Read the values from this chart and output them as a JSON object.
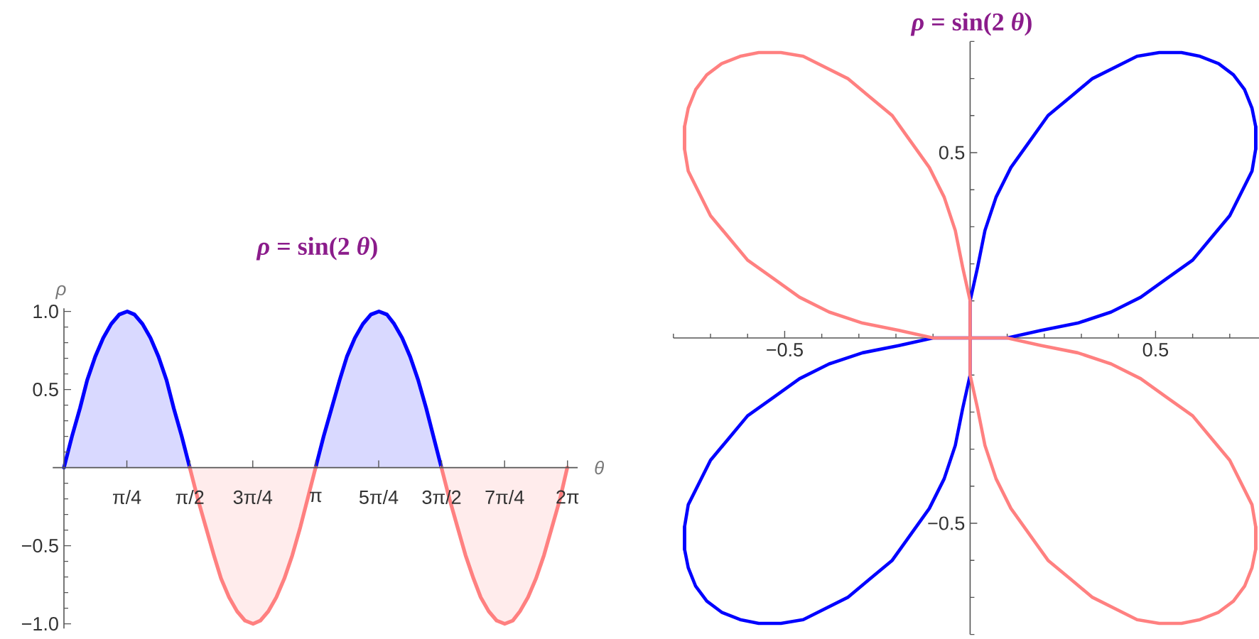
{
  "chart_data": [
    {
      "type": "area",
      "title": "*ρ* = sin(2 *θ*)",
      "xlabel": "θ",
      "ylabel": "ρ",
      "x": [
        0,
        0.1,
        0.2,
        0.29,
        0.39,
        0.49,
        0.59,
        0.69,
        0.79,
        0.88,
        0.98,
        1.08,
        1.18,
        1.28,
        1.37,
        1.47,
        1.57,
        1.67,
        1.77,
        1.87,
        1.96,
        2.06,
        2.16,
        2.26,
        2.36,
        2.45,
        2.55,
        2.65,
        2.75,
        2.85,
        2.95,
        3.04,
        3.14,
        3.24,
        3.34,
        3.44,
        3.53,
        3.63,
        3.73,
        3.83,
        3.93,
        4.03,
        4.12,
        4.22,
        4.32,
        4.42,
        4.52,
        4.61,
        4.71,
        4.81,
        4.91,
        5.01,
        5.11,
        5.2,
        5.3,
        5.4,
        5.5,
        5.6,
        5.69,
        5.79,
        5.89,
        5.99,
        6.09,
        6.19,
        6.28
      ],
      "xlim": [
        -0.14,
        6.41
      ],
      "ylim": [
        -1.03,
        1.02
      ],
      "xticks": [
        {
          "value": 0.785,
          "label": "π/4"
        },
        {
          "value": 1.571,
          "label": "π/2"
        },
        {
          "value": 2.356,
          "label": "3π/4"
        },
        {
          "value": 3.142,
          "label": "π"
        },
        {
          "value": 3.927,
          "label": "5π/4"
        },
        {
          "value": 4.712,
          "label": "3π/2"
        },
        {
          "value": 5.498,
          "label": "7π/4"
        },
        {
          "value": 6.283,
          "label": "2π"
        }
      ],
      "yticks": [
        {
          "value": -1,
          "label": "−1.0"
        },
        {
          "value": -0.9,
          "label": null
        },
        {
          "value": -0.8,
          "label": null
        },
        {
          "value": -0.7,
          "label": null
        },
        {
          "value": -0.6,
          "label": null
        },
        {
          "value": -0.5,
          "label": "−0.5"
        },
        {
          "value": -0.4,
          "label": null
        },
        {
          "value": -0.3,
          "label": null
        },
        {
          "value": -0.2,
          "label": null
        },
        {
          "value": -0.1,
          "label": null
        },
        {
          "value": 0.1,
          "label": null
        },
        {
          "value": 0.2,
          "label": null
        },
        {
          "value": 0.3,
          "label": null
        },
        {
          "value": 0.4,
          "label": null
        },
        0.5,
        {
          "value": 0.6,
          "label": null
        },
        {
          "value": 0.7,
          "label": null
        },
        {
          "value": 0.8,
          "label": null
        },
        {
          "value": 0.9,
          "label": null
        },
        {
          "value": 1,
          "label": "1.0"
        }
      ],
      "series": [
        {
          "color": "#0000ff",
          "values": [
            0,
            0.2,
            0.38,
            0.56,
            0.71,
            0.83,
            0.92,
            0.98,
            1,
            0.98,
            0.92,
            0.83,
            0.71,
            0.56,
            0.38,
            0.2,
            0,
            null,
            null,
            null,
            null,
            null,
            null,
            null,
            null,
            null,
            null,
            null,
            null,
            null,
            null,
            null,
            0,
            0.2,
            0.38,
            0.56,
            0.71,
            0.83,
            0.92,
            0.98,
            1,
            0.98,
            0.92,
            0.83,
            0.71,
            0.56,
            0.38,
            0.2,
            0,
            null,
            null,
            null,
            null,
            null,
            null,
            null,
            null,
            null,
            null,
            null,
            null,
            null,
            null,
            null,
            null
          ]
        },
        {
          "color": "#ff8080",
          "values": [
            null,
            null,
            null,
            null,
            null,
            null,
            null,
            null,
            null,
            null,
            null,
            null,
            null,
            null,
            null,
            null,
            0,
            -0.2,
            -0.38,
            -0.56,
            -0.71,
            -0.83,
            -0.92,
            -0.98,
            -1,
            -0.98,
            -0.92,
            -0.83,
            -0.71,
            -0.56,
            -0.38,
            -0.2,
            0,
            null,
            null,
            null,
            null,
            null,
            null,
            null,
            null,
            null,
            null,
            null,
            null,
            null,
            null,
            null,
            0,
            -0.2,
            -0.38,
            -0.56,
            -0.71,
            -0.83,
            -0.92,
            -0.98,
            -1,
            -0.98,
            -0.92,
            -0.83,
            -0.71,
            -0.56,
            -0.38,
            -0.2,
            0
          ]
        }
      ]
    },
    {
      "type": "line",
      "title": "*ρ* = sin(2 *θ*)",
      "xlim": [
        -0.8,
        0.78
      ],
      "ylim": [
        -0.8,
        0.8
      ],
      "xticks": [
        {
          "value": -0.8,
          "label": null
        },
        {
          "value": -0.7,
          "label": null
        },
        {
          "value": -0.6,
          "label": null
        },
        {
          "value": -0.5,
          "label": "−0.5"
        },
        {
          "value": -0.4,
          "label": null
        },
        {
          "value": -0.3,
          "label": null
        },
        {
          "value": -0.2,
          "label": null
        },
        {
          "value": -0.1,
          "label": null
        },
        {
          "value": 0.1,
          "label": null
        },
        {
          "value": 0.2,
          "label": null
        },
        {
          "value": 0.3,
          "label": null
        },
        {
          "value": 0.4,
          "label": null
        },
        0.5,
        {
          "value": 0.6,
          "label": null
        },
        {
          "value": 0.7,
          "label": null
        }
      ],
      "yticks": [
        {
          "value": -0.8,
          "label": null
        },
        {
          "value": -0.7,
          "label": null
        },
        {
          "value": -0.6,
          "label": null
        },
        {
          "value": -0.5,
          "label": "−0.5"
        },
        {
          "value": -0.4,
          "label": null
        },
        {
          "value": -0.3,
          "label": null
        },
        {
          "value": -0.2,
          "label": null
        },
        {
          "value": -0.1,
          "label": null
        },
        {
          "value": 0.1,
          "label": null
        },
        {
          "value": 0.2,
          "label": null
        },
        {
          "value": 0.3,
          "label": null
        },
        {
          "value": 0.4,
          "label": null
        },
        0.5,
        {
          "value": 0.6,
          "label": null
        },
        {
          "value": 0.7,
          "label": null
        },
        {
          "value": 0.8,
          "label": null
        }
      ],
      "series": [
        {
          "color": "#0000ff",
          "x": [
            0.77,
            0.77,
            0.76,
            0.74,
            0.71,
            0.67,
            0.62,
            0.57,
            0.51,
            0.45,
            0.39,
            0.33,
            0.27,
            0.21,
            0.16,
            0.11,
            0.07,
            0.04,
            0.02,
            0,
            0,
            -0.1,
            -0.19,
            -0.29,
            -0.38,
            -0.46,
            -0.53,
            -0.6,
            -0.65,
            -0.7,
            -0.73,
            -0.76,
            -0.77,
            -0.77
          ],
          "values": [
            0.51,
            0.57,
            0.62,
            0.67,
            0.71,
            0.74,
            0.76,
            0.77,
            0.77,
            0.76,
            0.73,
            0.7,
            0.65,
            0.6,
            0.53,
            0.46,
            0.38,
            0.29,
            0.19,
            0.1,
            0,
            0,
            -0.02,
            -0.04,
            -0.07,
            -0.11,
            -0.16,
            -0.21,
            -0.27,
            -0.33,
            -0.39,
            -0.45,
            -0.51,
            -0.57
          ]
        },
        {
          "color": "#0000ff",
          "x": [
            -0.77,
            -0.77,
            -0.76,
            -0.74,
            -0.71,
            -0.67,
            -0.62,
            -0.57,
            -0.51,
            -0.45,
            -0.39,
            -0.33,
            -0.27,
            -0.21,
            -0.16,
            -0.11,
            -0.07,
            -0.04,
            -0.02,
            0,
            0,
            0.1,
            0.19,
            0.29,
            0.38,
            0.46,
            0.53,
            0.6,
            0.65,
            0.7,
            0.73,
            0.76,
            0.77,
            0.77
          ],
          "values": [
            -0.51,
            -0.57,
            -0.62,
            -0.67,
            -0.71,
            -0.74,
            -0.76,
            -0.77,
            -0.77,
            -0.76,
            -0.73,
            -0.7,
            -0.65,
            -0.6,
            -0.53,
            -0.46,
            -0.38,
            -0.29,
            -0.19,
            -0.1,
            0,
            0,
            0.02,
            0.04,
            0.07,
            0.11,
            0.16,
            0.21,
            0.27,
            0.33,
            0.39,
            0.45,
            0.51,
            0.57
          ]
        },
        {
          "color": "#ff8080",
          "x": [
            0.77,
            0.77,
            0.76,
            0.74,
            0.71,
            0.67,
            0.62,
            0.57,
            0.51,
            0.45,
            0.39,
            0.33,
            0.27,
            0.21,
            0.16,
            0.11,
            0.07,
            0.04,
            0.02,
            0,
            0,
            -0.1,
            -0.19,
            -0.29,
            -0.38,
            -0.46,
            -0.53,
            -0.6,
            -0.65,
            -0.7,
            -0.73,
            -0.76,
            -0.77,
            -0.77
          ],
          "values": [
            -0.51,
            -0.57,
            -0.62,
            -0.67,
            -0.71,
            -0.74,
            -0.76,
            -0.77,
            -0.77,
            -0.76,
            -0.73,
            -0.7,
            -0.65,
            -0.6,
            -0.53,
            -0.46,
            -0.38,
            -0.29,
            -0.19,
            -0.1,
            0,
            0,
            0.02,
            0.04,
            0.07,
            0.11,
            0.16,
            0.21,
            0.27,
            0.33,
            0.39,
            0.45,
            0.51,
            0.57
          ]
        },
        {
          "color": "#ff8080",
          "x": [
            -0.77,
            -0.77,
            -0.76,
            -0.74,
            -0.71,
            -0.67,
            -0.62,
            -0.57,
            -0.51,
            -0.45,
            -0.39,
            -0.33,
            -0.27,
            -0.21,
            -0.16,
            -0.11,
            -0.07,
            -0.04,
            -0.02,
            0,
            0,
            0.1,
            0.19,
            0.29,
            0.38,
            0.46,
            0.53,
            0.6,
            0.65,
            0.7,
            0.73,
            0.76,
            0.77,
            0.77
          ],
          "values": [
            0.51,
            0.57,
            0.62,
            0.67,
            0.71,
            0.74,
            0.76,
            0.77,
            0.77,
            0.76,
            0.73,
            0.7,
            0.65,
            0.6,
            0.53,
            0.46,
            0.38,
            0.29,
            0.19,
            0.1,
            0,
            0,
            -0.02,
            -0.04,
            -0.07,
            -0.11,
            -0.16,
            -0.21,
            -0.27,
            -0.33,
            -0.39,
            -0.45,
            -0.51,
            -0.57
          ]
        }
      ]
    }
  ]
}
